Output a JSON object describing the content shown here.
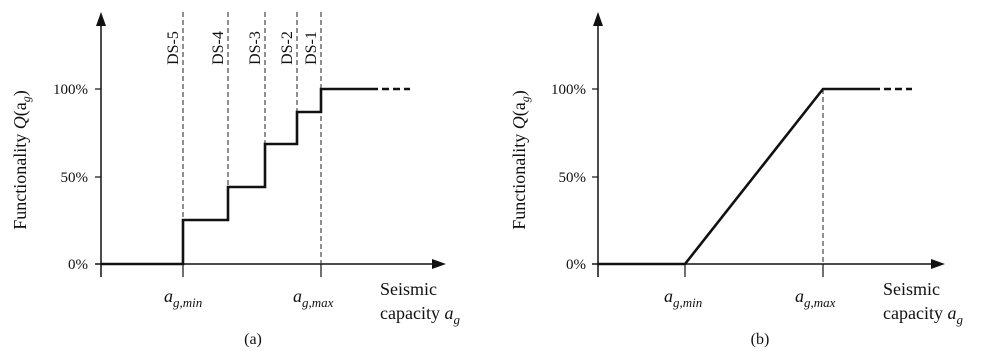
{
  "figure_a": {
    "caption": "(a)",
    "y_axis_label": "Functionality",
    "y_axis_symbol": "Q",
    "y_axis_arg": "(a",
    "y_axis_arg_sub": "g",
    "y_axis_arg_close": ")",
    "y_ticks": [
      "0%",
      "50%",
      "100%"
    ],
    "x_markers": [
      {
        "main": "a",
        "sub": "g,min"
      },
      {
        "main": "a",
        "sub": "g,max"
      }
    ],
    "x_axis_label_line1": "Seismic",
    "x_axis_label_line2": "capacity",
    "x_axis_label_symbol": "a",
    "x_axis_label_sub": "g",
    "damage_states": [
      "DS-5",
      "DS-4",
      "DS-3",
      "DS-2",
      "DS-1"
    ]
  },
  "figure_b": {
    "caption": "(b)",
    "y_axis_label": "Functionality",
    "y_axis_symbol": "Q",
    "y_axis_arg": "(a",
    "y_axis_arg_sub": "g",
    "y_axis_arg_close": ")",
    "y_ticks": [
      "0%",
      "50%",
      "100%"
    ],
    "x_markers": [
      {
        "main": "a",
        "sub": "g,min"
      },
      {
        "main": "a",
        "sub": "g,max"
      }
    ],
    "x_axis_label_line1": "Seismic",
    "x_axis_label_line2": "capacity",
    "x_axis_label_symbol": "a",
    "x_axis_label_sub": "g"
  },
  "colors": {
    "line": "#111111",
    "dashed": "#222222"
  }
}
